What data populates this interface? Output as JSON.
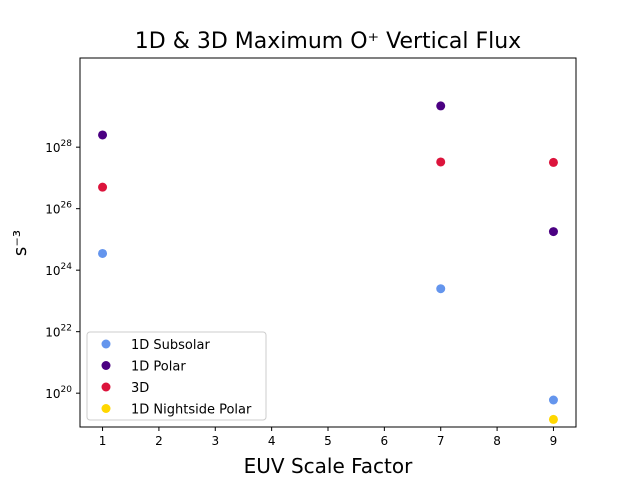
{
  "chart_data": {
    "type": "scatter",
    "title": "1D & 3D Maximum O⁺ Vertical Flux",
    "xlabel": "EUV Scale Factor",
    "ylabel": "s⁻³",
    "yscale": "log",
    "xlim": [
      0.6,
      9.4
    ],
    "ylim_exp": [
      18.9,
      30.9
    ],
    "xticks": [
      1,
      2,
      3,
      4,
      5,
      6,
      7,
      8,
      9
    ],
    "yticks": [
      {
        "exp": 20,
        "label": "10",
        "sup": "20"
      },
      {
        "exp": 22,
        "label": "10",
        "sup": "22"
      },
      {
        "exp": 24,
        "label": "10",
        "sup": "24"
      },
      {
        "exp": 26,
        "label": "10",
        "sup": "26"
      },
      {
        "exp": 28,
        "label": "10",
        "sup": "28"
      }
    ],
    "grid": false,
    "legend_position": "lower-left",
    "series": [
      {
        "name": "1D Subsolar",
        "color": "#6495ED",
        "points": [
          [
            1,
            3.5e+24
          ],
          [
            7,
            2.5e+23
          ],
          [
            9,
            6e+19
          ]
        ]
      },
      {
        "name": "1D Polar",
        "color": "#4B0082",
        "points": [
          [
            1,
            2.5e+28
          ],
          [
            7,
            2.2e+29
          ],
          [
            9,
            1.8e+25
          ]
        ]
      },
      {
        "name": "3D",
        "color": "#DC143C",
        "points": [
          [
            1,
            5e+26
          ],
          [
            7,
            3.3e+27
          ],
          [
            9,
            3.2e+27
          ]
        ]
      },
      {
        "name": "1D Nightside Polar",
        "color": "#FFD700",
        "points": [
          [
            9,
            1.4e+19
          ]
        ]
      }
    ]
  }
}
